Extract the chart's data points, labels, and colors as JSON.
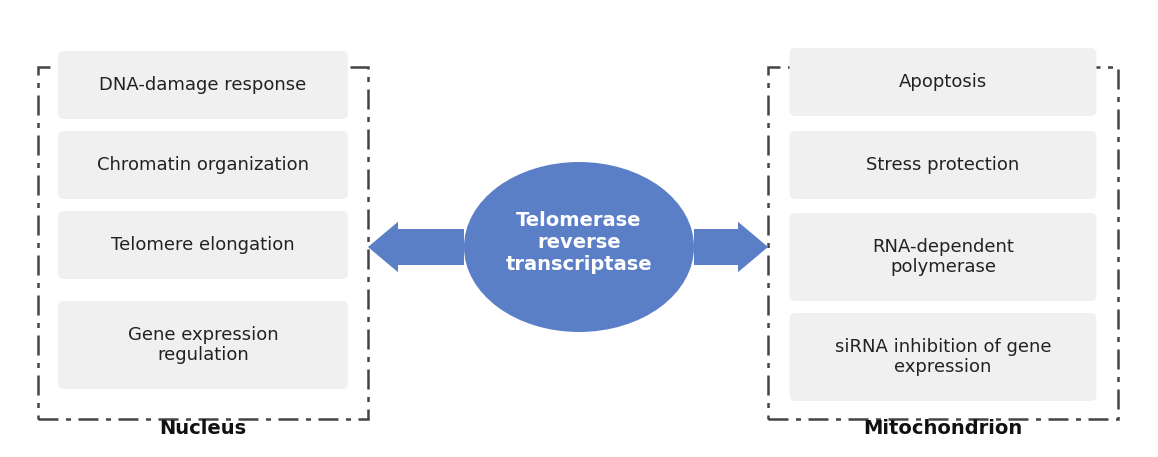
{
  "background_color": "#ffffff",
  "title": "Telomerase\nreverse\ntranscriptase",
  "ellipse_color": "#5b7fc7",
  "ellipse_text_color": "#ffffff",
  "left_label": "Nucleus",
  "right_label": "Mitochondrion",
  "left_items": [
    "DNA-damage response",
    "Chromatin organization",
    "Telomere elongation",
    "Gene expression\nregulation"
  ],
  "right_items": [
    "Apoptosis",
    "Stress protection",
    "RNA-dependent\npolymerase",
    "siRNA inhibition of gene\nexpression"
  ],
  "box_bg_color": "#f0f0f0",
  "box_text_color": "#222222",
  "dashed_border_color": "#444444",
  "arrow_color": "#5b7fc7",
  "label_fontsize": 14,
  "item_fontsize": 13,
  "title_fontsize": 14
}
